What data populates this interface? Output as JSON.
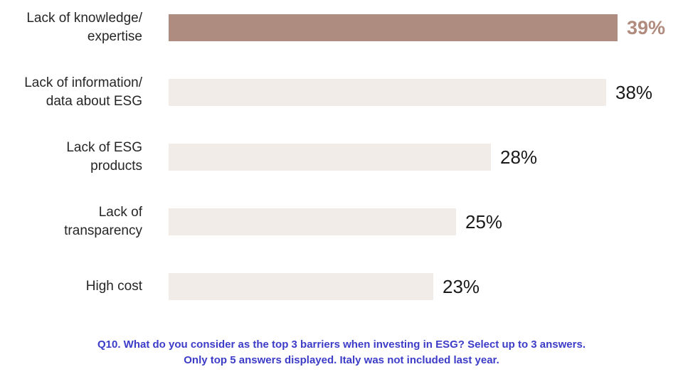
{
  "chart_data": {
    "type": "bar",
    "orientation": "horizontal",
    "title": "",
    "categories": [
      "Lack of knowledge/expertise",
      "Lack of information/data about ESG",
      "Lack of ESG products",
      "Lack of transparency",
      "High cost"
    ],
    "category_label_lines": [
      [
        "Lack of knowledge/",
        "expertise"
      ],
      [
        "Lack of information/",
        "data about ESG"
      ],
      [
        "Lack of ESG",
        "products"
      ],
      [
        "Lack of",
        "transparency"
      ],
      [
        "High cost"
      ]
    ],
    "values": [
      39,
      38,
      28,
      25,
      23
    ],
    "value_labels": [
      "39%",
      "38%",
      "28%",
      "25%",
      "23%"
    ],
    "highlight_index": 0,
    "xlim": [
      0,
      39
    ],
    "grid": false,
    "legend": false,
    "colors": {
      "background": "#ffffff",
      "bar": "#f2ece8",
      "highlight_bar": "#ae8d80",
      "value_text": "#1a1a1a",
      "highlight_value_text": "#b08b7e",
      "category_text": "#262626",
      "footnote_text": "#3c3cc8"
    }
  },
  "footnote": {
    "line1": "Q10. What do you consider as the top 3 barriers when investing in ESG? Select up to 3 answers.",
    "line2": "Only top 5 answers displayed. Italy was not included last year."
  }
}
